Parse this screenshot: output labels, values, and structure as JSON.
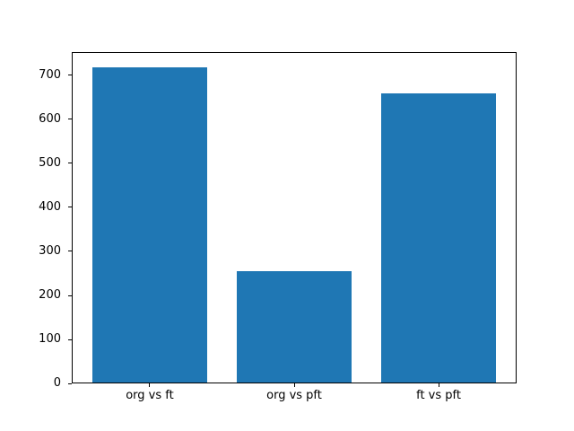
{
  "figure": {
    "background": "#ffffff"
  },
  "chart_data": {
    "type": "bar",
    "title": "",
    "xlabel": "",
    "ylabel": "",
    "categories": [
      "org vs ft",
      "org vs pft",
      "ft vs pft"
    ],
    "values": [
      717,
      256,
      658
    ],
    "bar_color": "#1f77b4",
    "axis_color": "#000000",
    "tick_label_color": "#000000",
    "yticks": [
      0,
      100,
      200,
      300,
      400,
      500,
      600,
      700
    ],
    "ylim": [
      0,
      752.85
    ],
    "xlim": [
      -0.54,
      2.54
    ],
    "bar_width": 0.8,
    "grid": false,
    "legend": "none"
  }
}
